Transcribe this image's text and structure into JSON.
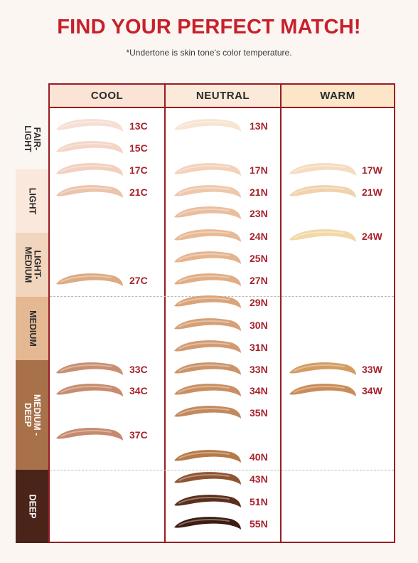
{
  "header": {
    "title": "FIND YOUR PERFECT MATCH!",
    "subtitle": "*Undertone is skin tone's color temperature."
  },
  "columns": [
    {
      "label": "COOL",
      "color": "#fbe3d6"
    },
    {
      "label": "NEUTRAL",
      "color": "#fbead9"
    },
    {
      "label": "WARM",
      "color": "#fde6c8"
    }
  ],
  "bands": [
    {
      "label": "FAIR-LIGHT",
      "lines": [
        "FAIR-",
        "LIGHT"
      ],
      "color": "#fbf6f1",
      "text_color": "#2b2b2b"
    },
    {
      "label": "LIGHT",
      "lines": [
        "LIGHT"
      ],
      "color": "#fbe8dc",
      "text_color": "#2b2b2b"
    },
    {
      "label": "LIGHT-MEDIUM",
      "lines": [
        "LIGHT-",
        "MEDIUM"
      ],
      "color": "#f2d5bd",
      "text_color": "#2b2b2b"
    },
    {
      "label": "MEDIUM",
      "lines": [
        "MEDIUM"
      ],
      "color": "#e3b892",
      "text_color": "#2b2b2b"
    },
    {
      "label": "MEDIUM-DEEP",
      "lines": [
        "MEDIUM -",
        "DEEP"
      ],
      "color": "#a8714a",
      "text_color": "#ffffff"
    },
    {
      "label": "DEEP",
      "lines": [
        "DEEP"
      ],
      "color": "#4a2419",
      "text_color": "#ffffff"
    }
  ],
  "shades": {
    "cool": [
      {
        "code": "13C",
        "color": "#f6dfd3"
      },
      {
        "code": "15C",
        "color": "#f4d5c6"
      },
      {
        "code": "17C",
        "color": "#f2d0bd"
      },
      {
        "code": "21C",
        "color": "#ecc3ab"
      },
      {
        "code": "27C",
        "color": "#dcab82"
      },
      {
        "code": "33C",
        "color": "#c88f72"
      },
      {
        "code": "34C",
        "color": "#c78c6f"
      },
      {
        "code": "37C",
        "color": "#c68a6f"
      }
    ],
    "neutral": [
      {
        "code": "13N",
        "color": "#f8e4d2"
      },
      {
        "code": "17N",
        "color": "#f3d2ba"
      },
      {
        "code": "21N",
        "color": "#eec8ac"
      },
      {
        "code": "23N",
        "color": "#eabd9d"
      },
      {
        "code": "24N",
        "color": "#e8b995"
      },
      {
        "code": "25N",
        "color": "#e5b48f"
      },
      {
        "code": "27N",
        "color": "#e0ad85"
      },
      {
        "code": "29N",
        "color": "#daa47a"
      },
      {
        "code": "30N",
        "color": "#d6a076"
      },
      {
        "code": "31N",
        "color": "#d29a70"
      },
      {
        "code": "33N",
        "color": "#cc946a"
      },
      {
        "code": "34N",
        "color": "#c98f63"
      },
      {
        "code": "35N",
        "color": "#c2895c"
      },
      {
        "code": "40N",
        "color": "#b67a48"
      },
      {
        "code": "43N",
        "color": "#8f5433"
      },
      {
        "code": "51N",
        "color": "#5c2e1c"
      },
      {
        "code": "55N",
        "color": "#3e1c12"
      }
    ],
    "warm": [
      {
        "code": "17W",
        "color": "#f5dcc0"
      },
      {
        "code": "21W",
        "color": "#f0d2ad"
      },
      {
        "code": "24W",
        "color": "#f2d8a8"
      },
      {
        "code": "33W",
        "color": "#d39c63"
      },
      {
        "code": "34W",
        "color": "#c98d59"
      }
    ]
  }
}
